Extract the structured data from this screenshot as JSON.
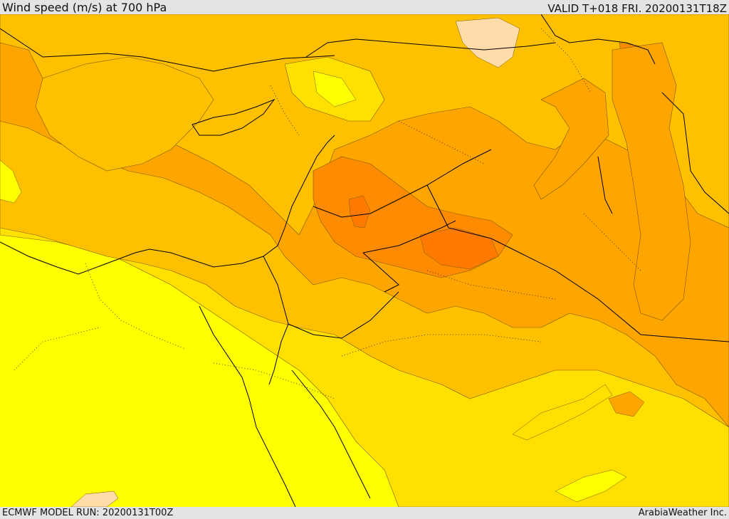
{
  "header": {
    "title": "Wind speed (m/s) at 700 hPa",
    "valid": "VALID T+018 FRI. 20200131T18Z"
  },
  "footer": {
    "model_run": "ECMWF MODEL RUN: 20200131T00Z",
    "credit": "ArabiaWeather Inc."
  },
  "map": {
    "field": "wind-speed-700hPa",
    "colors": {
      "level_1": "#ffff00",
      "level_2": "#ffe000",
      "level_3": "#ffc000",
      "level_4": "#ffa500",
      "level_5": "#ff8c00",
      "level_6": "#ff7a00",
      "light_patch": "#ffdca8",
      "contour": "#7a5a00",
      "coast": "#000000"
    }
  }
}
